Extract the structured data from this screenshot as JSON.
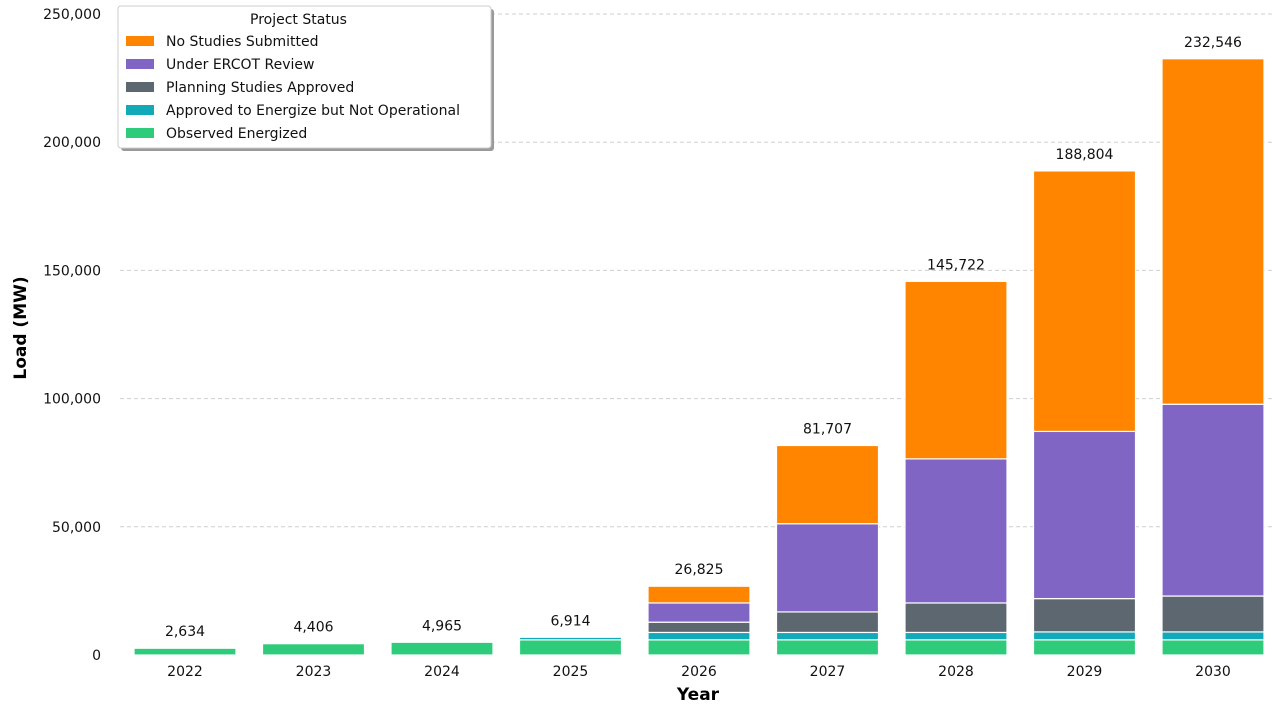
{
  "chart_data": {
    "type": "bar",
    "stacked": true,
    "title": "",
    "xlabel": "Year",
    "ylabel": "Load (MW)",
    "ylim": [
      0,
      250000
    ],
    "yticks": [
      0,
      50000,
      100000,
      150000,
      200000,
      250000
    ],
    "ytick_labels": [
      "0",
      "50,000",
      "100,000",
      "150,000",
      "200,000",
      "250,000"
    ],
    "grid": "y-dashed",
    "legend_title": "Project Status",
    "legend_position": "top-left",
    "categories": [
      "2022",
      "2023",
      "2024",
      "2025",
      "2026",
      "2027",
      "2028",
      "2029",
      "2030"
    ],
    "totals": [
      2634,
      4406,
      4965,
      6914,
      26825,
      81707,
      145722,
      188804,
      232546
    ],
    "total_labels": [
      "2,634",
      "4,406",
      "4,965",
      "6,914",
      "26,825",
      "81,707",
      "145,722",
      "188,804",
      "232,546"
    ],
    "series": [
      {
        "name": "Observed Energized",
        "color": "#2ecc7a",
        "values": [
          2634,
          4406,
          4965,
          5900,
          5900,
          5900,
          5900,
          5900,
          5900
        ]
      },
      {
        "name": "Approved to Energize but Not Operational",
        "color": "#12aab8",
        "values": [
          0,
          0,
          0,
          1014,
          2900,
          2900,
          2900,
          3100,
          3100
        ]
      },
      {
        "name": "Planning Studies Approved",
        "color": "#5d6770",
        "values": [
          0,
          0,
          0,
          0,
          4000,
          8000,
          11500,
          13000,
          14000
        ]
      },
      {
        "name": "Under ERCOT Review",
        "color": "#8065c4",
        "values": [
          0,
          0,
          0,
          0,
          7500,
          34400,
          56200,
          65200,
          74800
        ]
      },
      {
        "name": "No Studies Submitted",
        "color": "#ff8500",
        "values": [
          0,
          0,
          0,
          0,
          6525,
          30507,
          69222,
          101604,
          134746
        ]
      }
    ],
    "legend_order": [
      4,
      3,
      2,
      1,
      0
    ]
  }
}
